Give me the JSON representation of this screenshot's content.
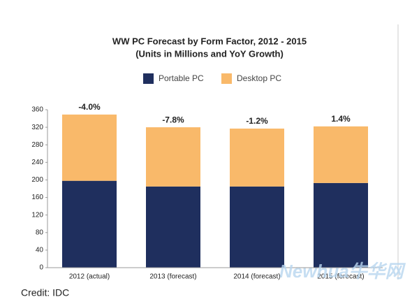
{
  "chart_data": {
    "type": "stacked_bar",
    "title": "WW PC Forecast by Form Factor, 2012 - 2015",
    "subtitle": "(Units in Millions and YoY Growth)",
    "categories": [
      "2012 (actual)",
      "2013 (forecast)",
      "2014 (forecast)",
      "2015 (forecast)"
    ],
    "series": [
      {
        "name": "Portable PC",
        "color": "#1f2f5e",
        "values": [
          198,
          185,
          185,
          193
        ]
      },
      {
        "name": "Desktop PC",
        "color": "#f9b96a",
        "values": [
          151,
          135,
          132,
          129
        ]
      }
    ],
    "growth_labels": [
      "-4.0%",
      "-7.8%",
      "-1.2%",
      "1.4%"
    ],
    "ylim": [
      0,
      360
    ],
    "yticks": [
      0,
      40,
      80,
      120,
      160,
      200,
      240,
      280,
      320,
      360
    ],
    "grid": false,
    "legend": "top"
  },
  "credit": "Credit: IDC",
  "watermark": "Newhua牛华网"
}
